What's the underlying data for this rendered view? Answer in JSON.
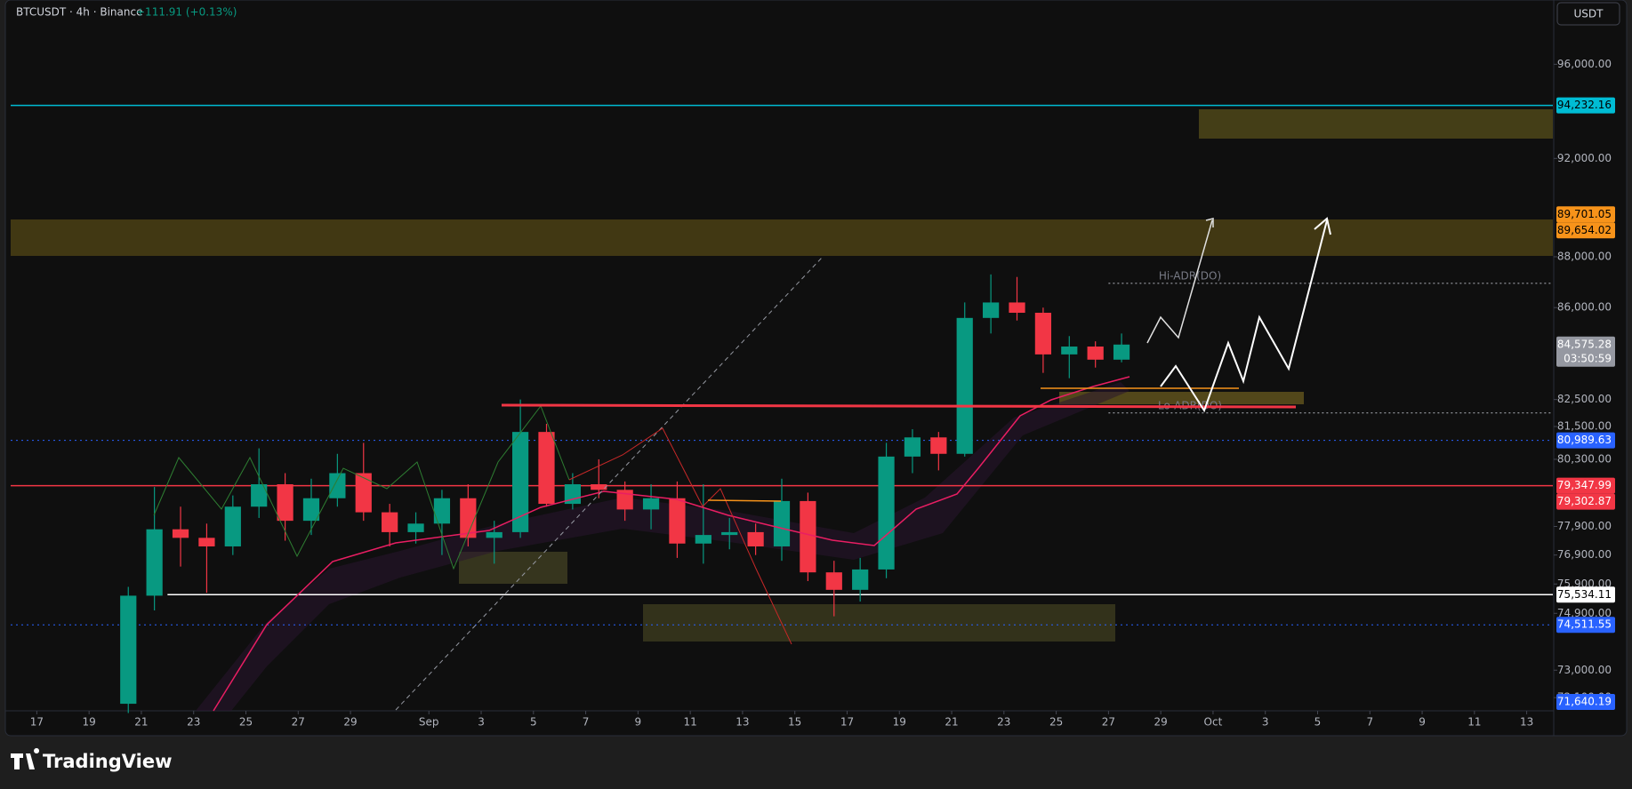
{
  "chart_data": {
    "type": "candlestick",
    "title": "BTCUSDT · 4h · Binance",
    "change": "+111.91 (+0.13%)",
    "currency": "USDT",
    "brand": "TradingView",
    "log_scale": true,
    "up_color": "#089981",
    "down_color": "#f23645",
    "ylim": [
      71700,
      98830
    ],
    "yticks": [
      {
        "value": 96000,
        "label": "96,000.00"
      },
      {
        "value": 92000,
        "label": "92,000.00"
      },
      {
        "value": 88000,
        "label": "88,000.00"
      },
      {
        "value": 86000,
        "label": "86,000.00"
      },
      {
        "value": 82500,
        "label": "82,500.00"
      },
      {
        "value": 81500,
        "label": "81,500.00"
      },
      {
        "value": 80300,
        "label": "80,300.00"
      },
      {
        "value": 77900,
        "label": "77,900.00"
      },
      {
        "value": 76900,
        "label": "76,900.00"
      },
      {
        "value": 75900,
        "label": "75,900.00"
      },
      {
        "value": 74900,
        "label": "74,900.00"
      },
      {
        "value": 73000,
        "label": "73,000.00"
      },
      {
        "value": 72100,
        "label": "72,100.00"
      }
    ],
    "xlim": [
      "08-16",
      "10-14"
    ],
    "xticks": [
      {
        "value": "08-17",
        "label": "17"
      },
      {
        "value": "08-19",
        "label": "19"
      },
      {
        "value": "08-21",
        "label": "21"
      },
      {
        "value": "08-23",
        "label": "23"
      },
      {
        "value": "08-25",
        "label": "25"
      },
      {
        "value": "08-27",
        "label": "27"
      },
      {
        "value": "08-29",
        "label": "29"
      },
      {
        "value": "09-01",
        "label": "Sep"
      },
      {
        "value": "09-03",
        "label": "3"
      },
      {
        "value": "09-05",
        "label": "5"
      },
      {
        "value": "09-07",
        "label": "7"
      },
      {
        "value": "09-09",
        "label": "9"
      },
      {
        "value": "09-11",
        "label": "11"
      },
      {
        "value": "09-13",
        "label": "13"
      },
      {
        "value": "09-15",
        "label": "15"
      },
      {
        "value": "09-17",
        "label": "17"
      },
      {
        "value": "09-19",
        "label": "19"
      },
      {
        "value": "09-21",
        "label": "21"
      },
      {
        "value": "09-23",
        "label": "23"
      },
      {
        "value": "09-25",
        "label": "25"
      },
      {
        "value": "09-27",
        "label": "27"
      },
      {
        "value": "09-29",
        "label": "29"
      },
      {
        "value": "10-01",
        "label": "Oct"
      },
      {
        "value": "10-03",
        "label": "3"
      },
      {
        "value": "10-05",
        "label": "5"
      },
      {
        "value": "10-07",
        "label": "7"
      },
      {
        "value": "10-09",
        "label": "9"
      },
      {
        "value": "10-11",
        "label": "11"
      },
      {
        "value": "10-13",
        "label": "13"
      }
    ],
    "x": [
      "08-20",
      "08-21",
      "08-22",
      "08-23",
      "08-24",
      "08-25",
      "08-26",
      "08-27",
      "08-28",
      "08-29",
      "08-30",
      "08-31",
      "09-01",
      "09-02",
      "09-03",
      "09-04",
      "09-05",
      "09-06",
      "09-07",
      "09-08",
      "09-09",
      "09-10",
      "09-11",
      "09-12",
      "09-13",
      "09-14",
      "09-15",
      "09-16",
      "09-17",
      "09-18",
      "09-19",
      "09-20",
      "09-21",
      "09-22",
      "09-23",
      "09-24",
      "09-25",
      "09-26",
      "09-27"
    ],
    "open": [
      71900,
      75500,
      77800,
      77500,
      77200,
      78600,
      79400,
      78100,
      78900,
      79800,
      78400,
      77700,
      78000,
      78900,
      77500,
      77700,
      81300,
      78700,
      79400,
      79200,
      78500,
      78900,
      77300,
      77600,
      77700,
      77200,
      78800,
      76300,
      75700,
      76400,
      80400,
      81100,
      80500,
      85600,
      86200,
      85800,
      84200,
      84500,
      84000
    ],
    "high": [
      75800,
      79300,
      78600,
      78000,
      79000,
      80700,
      79800,
      79600,
      80500,
      80900,
      78700,
      78400,
      79200,
      79400,
      78100,
      82500,
      81600,
      79800,
      80300,
      79500,
      79400,
      79500,
      79400,
      78200,
      78000,
      79600,
      79100,
      76700,
      76800,
      80900,
      81400,
      81300,
      86200,
      87300,
      87200,
      86000,
      84900,
      84700,
      85000
    ],
    "low": [
      71600,
      75000,
      76500,
      75600,
      76900,
      78200,
      77400,
      77600,
      78600,
      78100,
      77200,
      77300,
      76900,
      77200,
      76600,
      77500,
      78600,
      78500,
      78900,
      78100,
      77800,
      76800,
      76600,
      77100,
      76900,
      76700,
      76000,
      74800,
      75300,
      76100,
      79800,
      79900,
      80400,
      85000,
      85500,
      83500,
      83300,
      83700,
      83900
    ],
    "close": [
      75500,
      77800,
      77500,
      77200,
      78600,
      79400,
      78100,
      78900,
      79800,
      78400,
      77700,
      78000,
      78900,
      77500,
      77700,
      81300,
      78700,
      79400,
      79200,
      78500,
      78900,
      77300,
      77600,
      77700,
      77200,
      78800,
      76300,
      75700,
      76400,
      80400,
      81100,
      80500,
      85600,
      86200,
      85800,
      84200,
      84500,
      84000,
      84575.28
    ],
    "price_labels": [
      {
        "value": 94232.16,
        "label": "94,232.16",
        "color": "#00bcd4",
        "text_color": "#000000",
        "line": "solid"
      },
      {
        "value": 89701.05,
        "label": "89,701.05",
        "color": "#f7931a",
        "text_color": "#000000"
      },
      {
        "value": 89654.02,
        "label": "89,654.02",
        "color": "#f7931a",
        "text_color": "#000000"
      },
      {
        "value": 84575.28,
        "label": "84,575.28",
        "color": "#9598a1",
        "text_color": "#ffffff",
        "timer": "03:50:59"
      },
      {
        "value": 80989.63,
        "label": "80,989.63",
        "color": "#2962ff",
        "text_color": "#ffffff",
        "line": "dotted"
      },
      {
        "value": 79347.99,
        "label": "79,347.99",
        "color": "#f23645",
        "text_color": "#ffffff",
        "line": "solid"
      },
      {
        "value": 79302.87,
        "label": "79,302.87",
        "color": "#f23645",
        "text_color": "#ffffff"
      },
      {
        "value": 75534.11,
        "label": "75,534.11",
        "color": "#ffffff",
        "text_color": "#000000",
        "line": "solid",
        "from": "08-22"
      },
      {
        "value": 74511.55,
        "label": "74,511.55",
        "color": "#2962ff",
        "text_color": "#ffffff",
        "line": "dotted"
      },
      {
        "value": 71640.19,
        "label": "71,640.19",
        "color": "#2962ff",
        "text_color": "#ffffff"
      }
    ],
    "adr_lines": [
      {
        "label": "Hi-ADR(DO)",
        "value": 86950,
        "from": "09-27"
      },
      {
        "label": "Lo-ADR(DO)",
        "value": 82000,
        "from": "09-27"
      }
    ]
  }
}
